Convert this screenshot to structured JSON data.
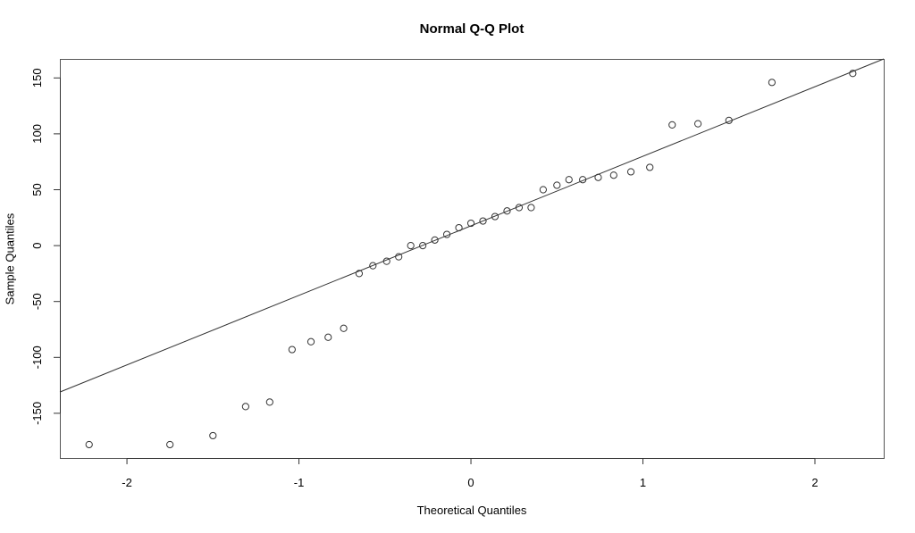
{
  "chart_data": {
    "type": "scatter",
    "title": "Normal Q-Q Plot",
    "xlabel": "Theoretical Quantiles",
    "ylabel": "Sample Quantiles",
    "xlim": [
      -2.39,
      2.4
    ],
    "ylim": [
      -190,
      167
    ],
    "x_ticks": [
      -2,
      -1,
      0,
      1,
      2
    ],
    "y_ticks": [
      -150,
      -100,
      -50,
      0,
      50,
      100,
      150
    ],
    "grid": false,
    "legend": null,
    "points": {
      "x": [
        -2.22,
        -1.75,
        -1.5,
        -1.31,
        -1.17,
        -1.04,
        -0.93,
        -0.83,
        -0.74,
        -0.65,
        -0.57,
        -0.49,
        -0.42,
        -0.35,
        -0.28,
        -0.21,
        -0.14,
        -0.07,
        0.0,
        0.07,
        0.14,
        0.21,
        0.28,
        0.35,
        0.42,
        0.5,
        0.57,
        0.65,
        0.74,
        0.83,
        0.93,
        1.04,
        1.17,
        1.32,
        1.5,
        1.75,
        2.22
      ],
      "y": [
        -178,
        -178,
        -170,
        -144,
        -140,
        -93,
        -86,
        -82,
        -74,
        -25,
        -18,
        -14,
        -10,
        0,
        0,
        5,
        10,
        16,
        20,
        22,
        26,
        31,
        34,
        34,
        50,
        54,
        59,
        59,
        61,
        63,
        66,
        70,
        108,
        109,
        112,
        146,
        154
      ]
    },
    "reference_line": {
      "from": [
        -2.39,
        -131
      ],
      "to": [
        2.4,
        167
      ]
    },
    "marker": "open-circle"
  }
}
